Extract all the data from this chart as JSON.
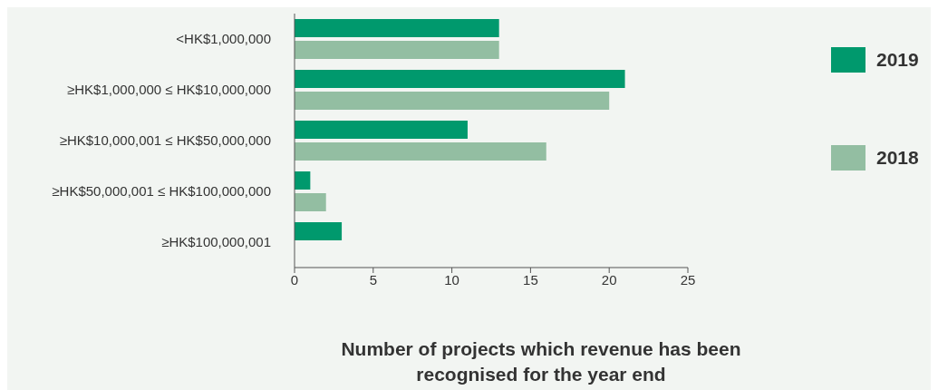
{
  "chart_data": {
    "type": "bar",
    "orientation": "horizontal",
    "categories": [
      "<HK$1,000,000",
      "≥HK$1,000,000 ≤ HK$10,000,000",
      "≥HK$10,000,001 ≤ HK$50,000,000",
      "≥HK$50,000,001 ≤ HK$100,000,000",
      "≥HK$100,000,001"
    ],
    "series": [
      {
        "name": "2019",
        "color": "#00996d",
        "values": [
          13,
          21,
          11,
          1,
          3
        ]
      },
      {
        "name": "2018",
        "color": "#93bea2",
        "values": [
          13,
          20,
          16,
          2,
          0
        ]
      }
    ],
    "xlim": [
      0,
      25
    ],
    "xticks": [
      0,
      5,
      10,
      15,
      20,
      25
    ],
    "xlabel": "Number of projects which revenue has been recognised for the year end",
    "grid": false,
    "legend": "right"
  }
}
